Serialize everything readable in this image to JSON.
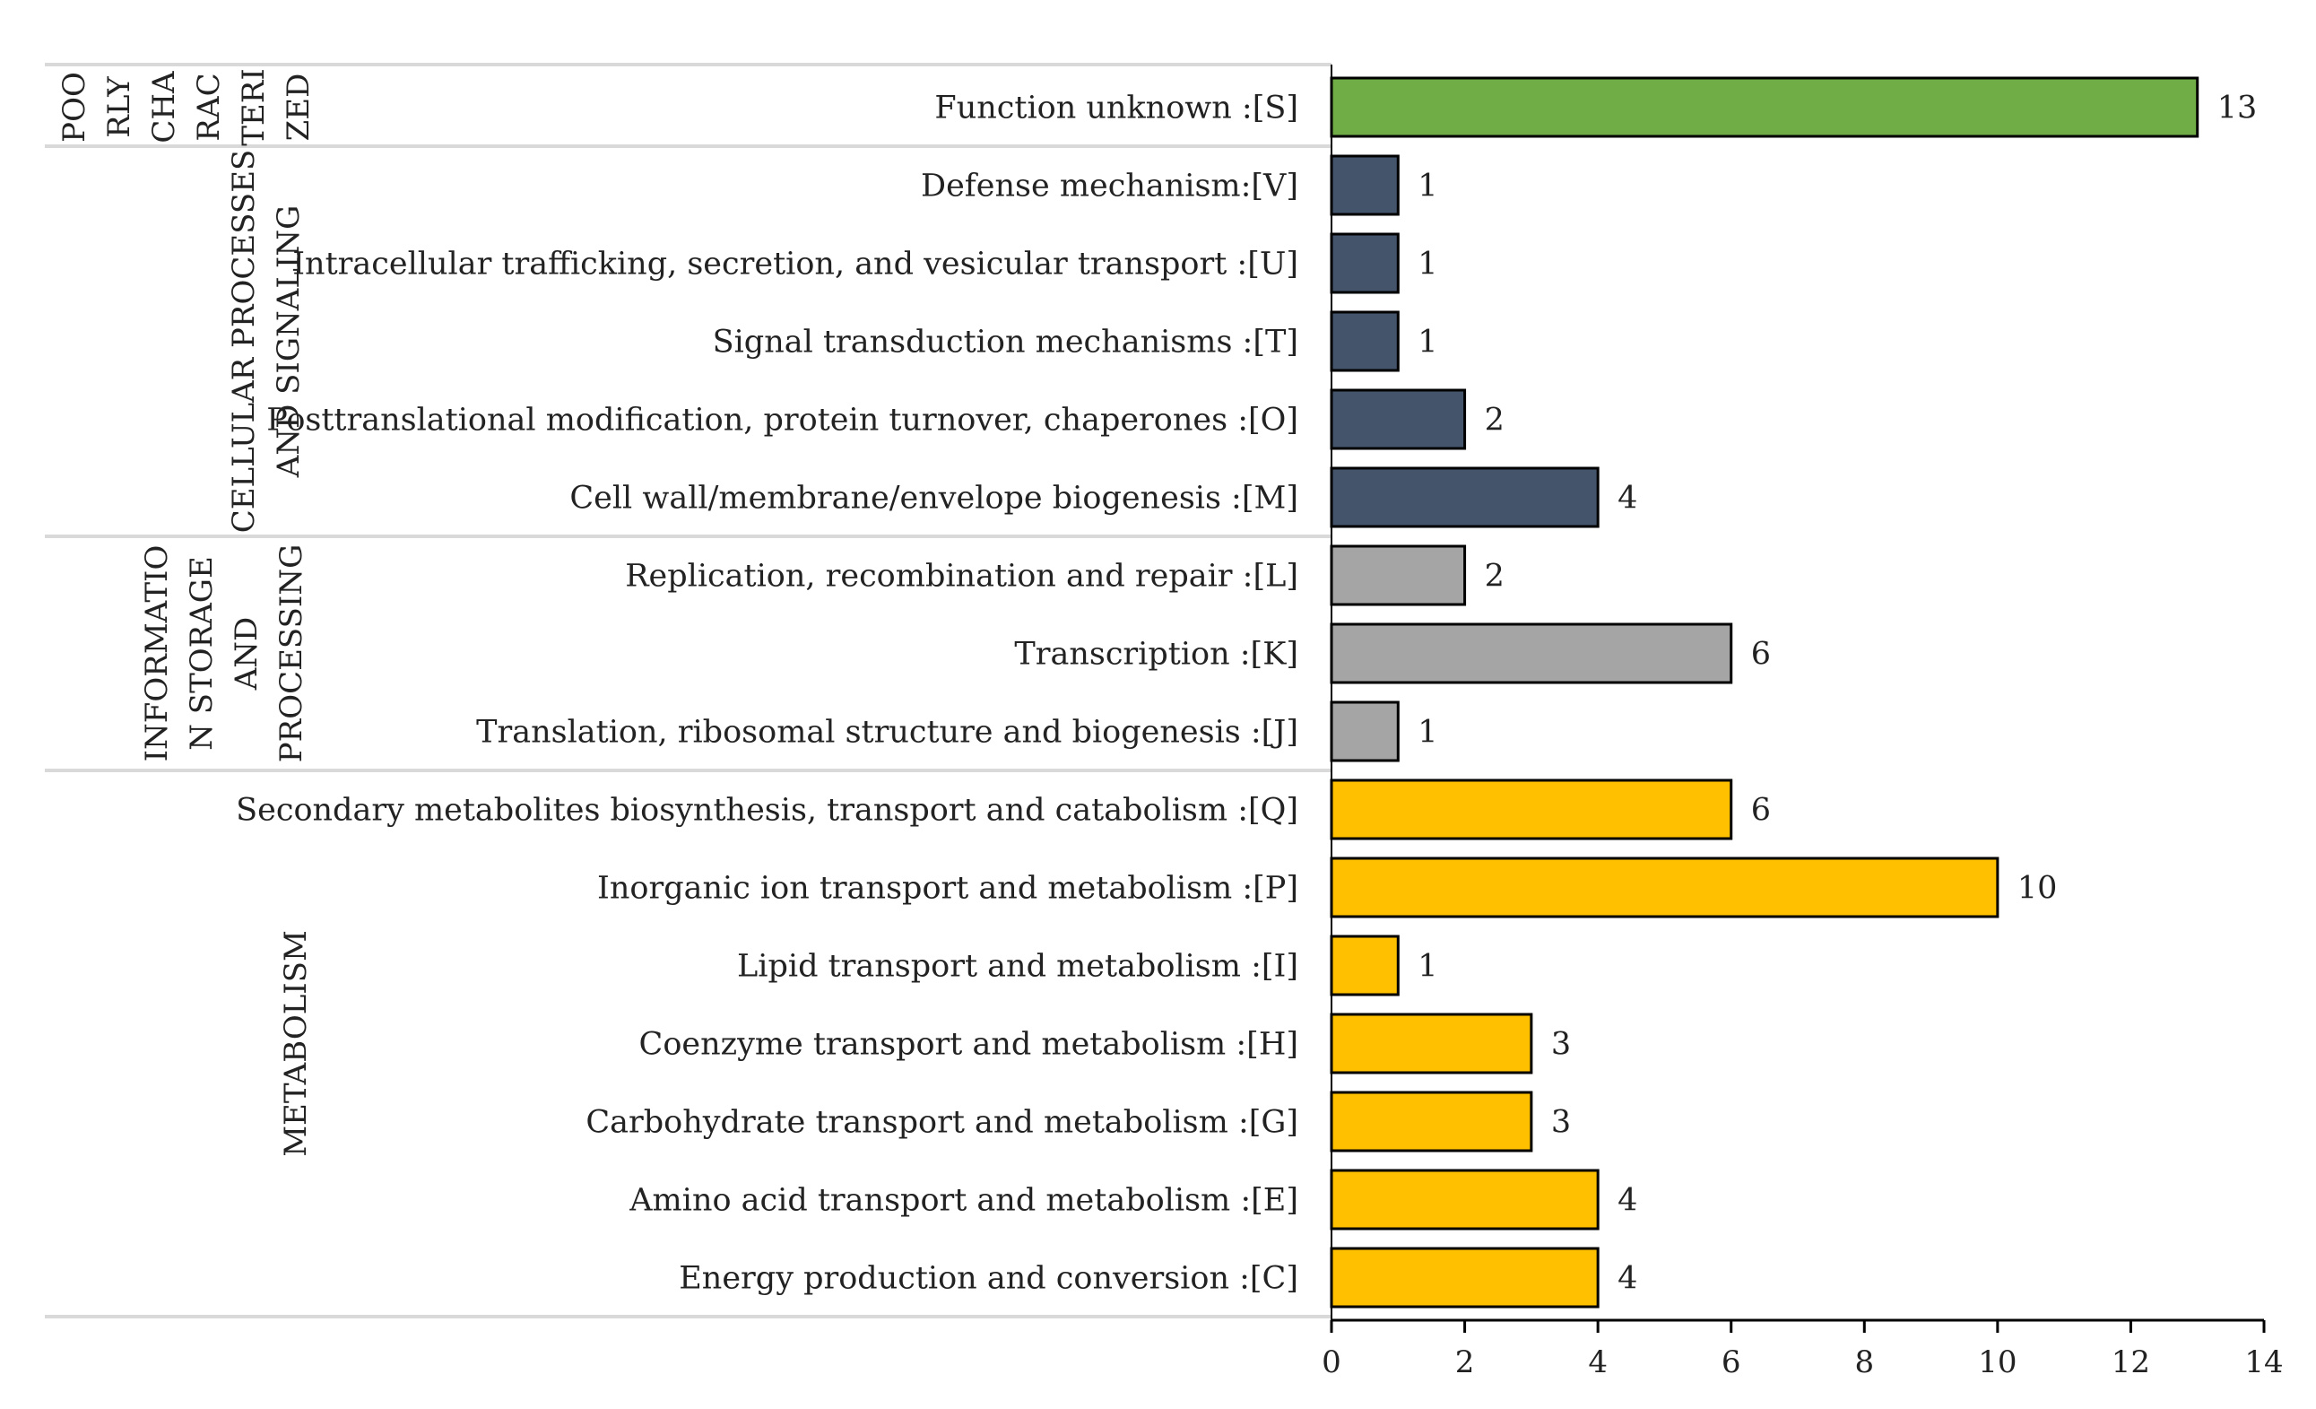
{
  "chart_data": {
    "type": "bar",
    "orientation": "horizontal",
    "xlim": [
      0,
      14
    ],
    "xticks": [
      0,
      2,
      4,
      6,
      8,
      10,
      12,
      14
    ],
    "grid": false,
    "legend": "none",
    "groups": [
      {
        "lines": [
          "POO",
          "RLY",
          "CHA",
          "RAC",
          "TERI",
          "ZED"
        ],
        "color": "#70ad47",
        "bars": [
          {
            "label": "Function unknown :[S]",
            "value": 13
          }
        ]
      },
      {
        "lines": [
          "CELLULAR PROCESSES",
          "AND SIGNALING"
        ],
        "color": "#44546a",
        "bars": [
          {
            "label": "Defense mechanism:[V]",
            "value": 1
          },
          {
            "label": "Intracellular trafficking, secretion, and vesicular transport :[U]",
            "value": 1
          },
          {
            "label": "Signal transduction mechanisms :[T]",
            "value": 1
          },
          {
            "label": "Posttranslational modification, protein turnover, chaperones :[O]",
            "value": 2
          },
          {
            "label": "Cell wall/membrane/envelope biogenesis :[M]",
            "value": 4
          }
        ]
      },
      {
        "lines": [
          "INFORMATIO",
          "N STORAGE",
          "AND",
          "PROCESSING"
        ],
        "color": "#a5a5a5",
        "bars": [
          {
            "label": "Replication, recombination and repair :[L]",
            "value": 2
          },
          {
            "label": "Transcription :[K]",
            "value": 6
          },
          {
            "label": "Translation, ribosomal structure and biogenesis :[J]",
            "value": 1
          }
        ]
      },
      {
        "lines": [
          "METABOLISM"
        ],
        "color": "#ffc000",
        "bars": [
          {
            "label": "Secondary metabolites biosynthesis, transport and catabolism :[Q]",
            "value": 6
          },
          {
            "label": "Inorganic ion transport and metabolism :[P]",
            "value": 10
          },
          {
            "label": "Lipid transport and metabolism :[I]",
            "value": 1
          },
          {
            "label": "Coenzyme transport and metabolism :[H]",
            "value": 3
          },
          {
            "label": "Carbohydrate transport and metabolism :[G]",
            "value": 3
          },
          {
            "label": "Amino acid transport and metabolism :[E]",
            "value": 4
          },
          {
            "label": "Energy production and conversion :[C]",
            "value": 4
          }
        ]
      }
    ]
  }
}
